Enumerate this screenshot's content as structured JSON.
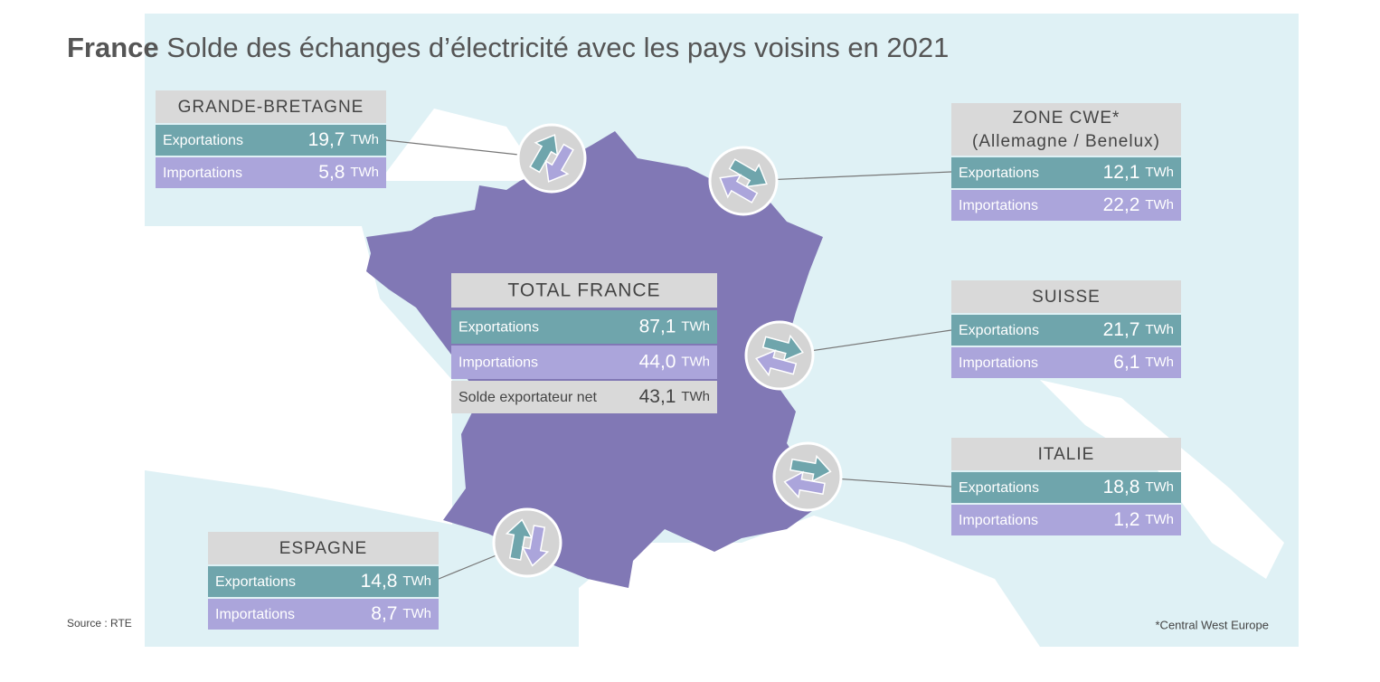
{
  "title": {
    "bold": "France",
    "rest": "Solde des échanges d’électricité avec les pays voisins en 2021"
  },
  "labels": {
    "exports": "Exportations",
    "imports": "Importations",
    "unit": "TWh"
  },
  "total": {
    "name": "TOTAL FRANCE",
    "exports": "87,1",
    "imports": "44,0",
    "net_label": "Solde exportateur net",
    "net": "43,1"
  },
  "borders": [
    {
      "name": [
        "GRANDE-BRETAGNE"
      ],
      "exports": "19,7",
      "imports": "5,8"
    },
    {
      "name": [
        "ZONE CWE*",
        "(Allemagne / Benelux)"
      ],
      "exports": "12,1",
      "imports": "22,2"
    },
    {
      "name": [
        "SUISSE"
      ],
      "exports": "21,7",
      "imports": "6,1"
    },
    {
      "name": [
        "ITALIE"
      ],
      "exports": "18,8",
      "imports": "1,2"
    },
    {
      "name": [
        "ESPAGNE"
      ],
      "exports": "14,8",
      "imports": "8,7"
    }
  ],
  "source": "Source : RTE",
  "footnote": "*Central West Europe"
}
